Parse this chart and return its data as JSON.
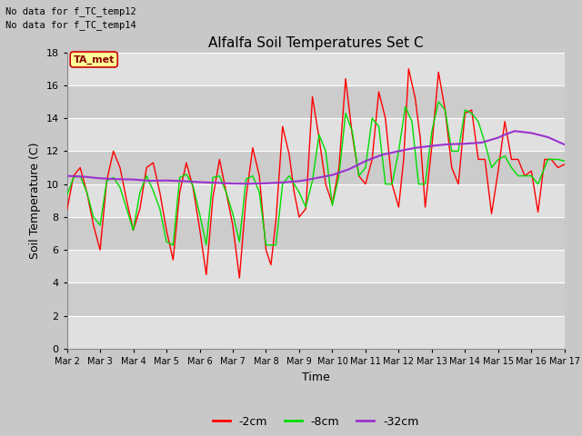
{
  "title": "Alfalfa Soil Temperatures Set C",
  "xlabel": "Time",
  "ylabel": "Soil Temperature (C)",
  "no_data_text": [
    "No data for f_TC_temp12",
    "No data for f_TC_temp14"
  ],
  "legend_label": "TA_met",
  "ylim": [
    0,
    18
  ],
  "yticks": [
    0,
    2,
    4,
    6,
    8,
    10,
    12,
    14,
    16,
    18
  ],
  "xtick_labels": [
    "Mar 2",
    "Mar 3",
    "Mar 4",
    "Mar 5",
    "Mar 6",
    "Mar 7",
    "Mar 8",
    "Mar 9",
    "Mar 10",
    "Mar 11",
    "Mar 12",
    "Mar 13",
    "Mar 14",
    "Mar 15",
    "Mar 16",
    "Mar 17"
  ],
  "fig_bg_color": "#c8c8c8",
  "plot_bg_color": "#d8d8d8",
  "band_light": "#e0e0e0",
  "band_dark": "#cccccc",
  "grid_color": "#ffffff",
  "colors": {
    "2cm": "#ff0000",
    "8cm": "#00dd00",
    "32cm": "#9933cc"
  },
  "series_2cm_x": [
    0,
    0.2,
    0.4,
    0.6,
    0.8,
    1.0,
    1.2,
    1.4,
    1.6,
    1.8,
    2.0,
    2.2,
    2.4,
    2.6,
    2.8,
    3.0,
    3.2,
    3.4,
    3.6,
    3.8,
    4.0,
    4.2,
    4.4,
    4.6,
    4.8,
    5.0,
    5.2,
    5.4,
    5.6,
    5.8,
    6.0,
    6.15,
    6.3,
    6.5,
    6.7,
    6.85,
    7.0,
    7.2,
    7.4,
    7.6,
    7.8,
    8.0,
    8.2,
    8.4,
    8.6,
    8.8,
    9.0,
    9.2,
    9.4,
    9.6,
    9.8,
    10.0,
    10.15,
    10.3,
    10.5,
    10.65,
    10.8,
    11.0,
    11.2,
    11.4,
    11.6,
    11.8,
    12.0,
    12.2,
    12.4,
    12.6,
    12.8,
    13.0,
    13.2,
    13.4,
    13.6,
    13.8,
    14.0,
    14.2,
    14.4,
    14.6,
    14.8,
    15.0
  ],
  "series_2cm_y": [
    8.4,
    10.5,
    11.0,
    9.5,
    7.5,
    6.0,
    10.2,
    12.0,
    11.0,
    9.0,
    7.2,
    8.5,
    11.0,
    11.3,
    9.5,
    7.2,
    5.4,
    9.5,
    11.3,
    9.8,
    7.3,
    4.5,
    9.2,
    11.5,
    9.5,
    7.5,
    4.3,
    9.2,
    12.2,
    10.5,
    6.0,
    5.1,
    7.8,
    13.5,
    11.8,
    9.5,
    8.0,
    8.5,
    15.3,
    12.8,
    10.0,
    8.8,
    11.0,
    16.4,
    13.0,
    10.5,
    10.0,
    11.5,
    15.6,
    14.0,
    10.0,
    8.6,
    11.5,
    17.0,
    15.2,
    12.8,
    8.6,
    12.3,
    16.8,
    14.5,
    11.0,
    10.0,
    14.3,
    14.5,
    11.5,
    11.5,
    8.2,
    10.8,
    13.8,
    11.5,
    11.5,
    10.5,
    10.8,
    8.3,
    11.5,
    11.5,
    11.0,
    11.2
  ],
  "series_8cm_x": [
    0,
    0.2,
    0.4,
    0.6,
    0.8,
    1.0,
    1.2,
    1.4,
    1.6,
    1.8,
    2.0,
    2.2,
    2.4,
    2.6,
    2.8,
    3.0,
    3.2,
    3.4,
    3.6,
    3.8,
    4.0,
    4.2,
    4.4,
    4.6,
    4.8,
    5.0,
    5.2,
    5.4,
    5.6,
    5.8,
    6.0,
    6.3,
    6.5,
    6.7,
    7.0,
    7.2,
    7.4,
    7.6,
    7.8,
    8.0,
    8.2,
    8.4,
    8.6,
    8.8,
    9.0,
    9.2,
    9.4,
    9.6,
    9.8,
    10.0,
    10.2,
    10.4,
    10.6,
    10.8,
    11.0,
    11.2,
    11.4,
    11.6,
    11.8,
    12.0,
    12.2,
    12.4,
    12.6,
    12.8,
    13.0,
    13.2,
    13.4,
    13.6,
    13.8,
    14.0,
    14.2,
    14.5,
    14.8,
    15.0
  ],
  "series_8cm_y": [
    9.3,
    10.4,
    10.5,
    9.5,
    8.0,
    7.5,
    10.2,
    10.4,
    9.8,
    8.5,
    7.2,
    9.5,
    10.5,
    9.6,
    8.5,
    6.5,
    6.3,
    10.4,
    10.6,
    9.9,
    8.2,
    6.3,
    10.4,
    10.5,
    9.5,
    8.2,
    6.5,
    10.3,
    10.5,
    9.5,
    6.3,
    6.3,
    10.0,
    10.5,
    9.5,
    8.6,
    10.2,
    13.0,
    12.0,
    8.7,
    10.5,
    14.3,
    13.2,
    10.5,
    11.0,
    14.0,
    13.5,
    10.0,
    10.0,
    12.0,
    14.7,
    13.8,
    10.0,
    10.0,
    13.2,
    15.0,
    14.5,
    12.0,
    12.0,
    14.5,
    14.3,
    13.8,
    12.5,
    11.0,
    11.5,
    11.7,
    11.0,
    10.5,
    10.5,
    10.5,
    10.0,
    11.5,
    11.5,
    11.4
  ],
  "series_32cm_x": [
    0,
    0.5,
    1.0,
    1.5,
    2.0,
    2.5,
    3.0,
    3.5,
    4.0,
    4.5,
    5.0,
    5.5,
    6.0,
    6.5,
    7.0,
    7.3,
    7.6,
    8.0,
    8.5,
    9.0,
    9.5,
    10.0,
    10.5,
    11.0,
    11.5,
    12.0,
    12.5,
    13.0,
    13.2,
    13.5,
    14.0,
    14.5,
    15.0
  ],
  "series_32cm_y": [
    10.5,
    10.45,
    10.35,
    10.3,
    10.28,
    10.2,
    10.22,
    10.18,
    10.12,
    10.08,
    10.03,
    10.02,
    10.05,
    10.1,
    10.18,
    10.28,
    10.4,
    10.55,
    10.9,
    11.4,
    11.78,
    12.0,
    12.2,
    12.32,
    12.42,
    12.45,
    12.52,
    12.82,
    13.0,
    13.22,
    13.1,
    12.85,
    12.4
  ]
}
